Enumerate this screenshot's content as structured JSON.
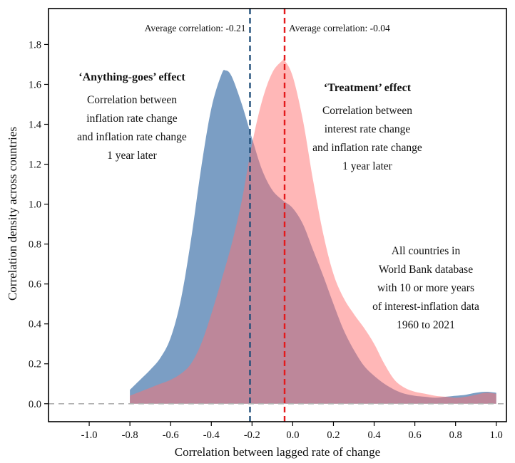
{
  "chart_data": {
    "type": "area",
    "xlabel": "Correlation between lagged rate of change",
    "ylabel": "Correlation density across countries",
    "xlim": [
      -1.2,
      1.05
    ],
    "ylim": [
      -0.09,
      1.98
    ],
    "x_ticks": [
      -1.0,
      -0.8,
      -0.6,
      -0.4,
      -0.2,
      0.0,
      0.2,
      0.4,
      0.6,
      0.8,
      1.0
    ],
    "x_tick_labels": [
      "-1.0",
      "-0.8",
      "-0.6",
      "-0.4",
      "-0.2",
      "0.0",
      "0.2",
      "0.4",
      "0.6",
      "0.8",
      "1.0"
    ],
    "y_ticks": [
      0.0,
      0.2,
      0.4,
      0.6,
      0.8,
      1.0,
      1.2,
      1.4,
      1.6,
      1.8
    ],
    "y_tick_labels": [
      "0.0",
      "0.2",
      "0.4",
      "0.6",
      "0.8",
      "1.0",
      "1.2",
      "1.4",
      "1.6",
      "1.8"
    ],
    "grid": false,
    "baseline": 0.0,
    "series": [
      {
        "color": "#7b9ec4",
        "x": [
          -0.8,
          -0.75,
          -0.7,
          -0.65,
          -0.6,
          -0.55,
          -0.5,
          -0.45,
          -0.4,
          -0.35,
          -0.33,
          -0.3,
          -0.25,
          -0.2,
          -0.15,
          -0.1,
          -0.05,
          0.0,
          0.05,
          0.1,
          0.15,
          0.2,
          0.25,
          0.3,
          0.35,
          0.4,
          0.45,
          0.5,
          0.55,
          0.6,
          0.65,
          0.7,
          0.75,
          0.8,
          0.85,
          0.9,
          0.95,
          1.0
        ],
        "y": [
          0.07,
          0.12,
          0.17,
          0.23,
          0.33,
          0.52,
          0.82,
          1.18,
          1.48,
          1.65,
          1.67,
          1.64,
          1.5,
          1.33,
          1.17,
          1.07,
          1.02,
          0.98,
          0.9,
          0.77,
          0.64,
          0.5,
          0.37,
          0.27,
          0.19,
          0.14,
          0.1,
          0.07,
          0.05,
          0.04,
          0.035,
          0.03,
          0.035,
          0.04,
          0.045,
          0.055,
          0.06,
          0.055
        ]
      },
      {
        "color": "#ff7070",
        "x": [
          -0.8,
          -0.75,
          -0.7,
          -0.65,
          -0.6,
          -0.55,
          -0.5,
          -0.45,
          -0.4,
          -0.35,
          -0.3,
          -0.25,
          -0.2,
          -0.15,
          -0.1,
          -0.05,
          -0.04,
          0.0,
          0.05,
          0.1,
          0.15,
          0.2,
          0.25,
          0.3,
          0.35,
          0.4,
          0.45,
          0.5,
          0.55,
          0.6,
          0.65,
          0.7,
          0.75,
          0.8,
          0.85,
          0.9,
          0.95,
          1.0
        ],
        "y": [
          0.04,
          0.06,
          0.08,
          0.1,
          0.12,
          0.15,
          0.2,
          0.3,
          0.45,
          0.62,
          0.8,
          1.02,
          1.3,
          1.52,
          1.66,
          1.72,
          1.72,
          1.64,
          1.42,
          1.12,
          0.85,
          0.65,
          0.53,
          0.45,
          0.38,
          0.3,
          0.2,
          0.12,
          0.08,
          0.06,
          0.05,
          0.04,
          0.035,
          0.03,
          0.035,
          0.045,
          0.055,
          0.05
        ]
      }
    ],
    "reference_lines": [
      {
        "x": -0.21,
        "color": "#1f4e79",
        "label": "Average correlation:  -0.21"
      },
      {
        "x": -0.04,
        "color": "#e31a1c",
        "label": "Average correlation:  -0.04"
      }
    ],
    "annotations": [
      {
        "title": "‘Anything-goes’ effect",
        "lines": [
          "Correlation between",
          "inflation rate change",
          "and inflation rate change",
          "1 year later"
        ]
      },
      {
        "title": "‘Treatment’ effect",
        "lines": [
          "Correlation between",
          "interest rate change",
          "and inflation rate change",
          "1 year later"
        ]
      },
      {
        "title": "",
        "lines": [
          "All countries in",
          "World Bank database",
          "with 10 or more years",
          "of interest-inflation data",
          "1960 to 2021"
        ]
      }
    ]
  }
}
